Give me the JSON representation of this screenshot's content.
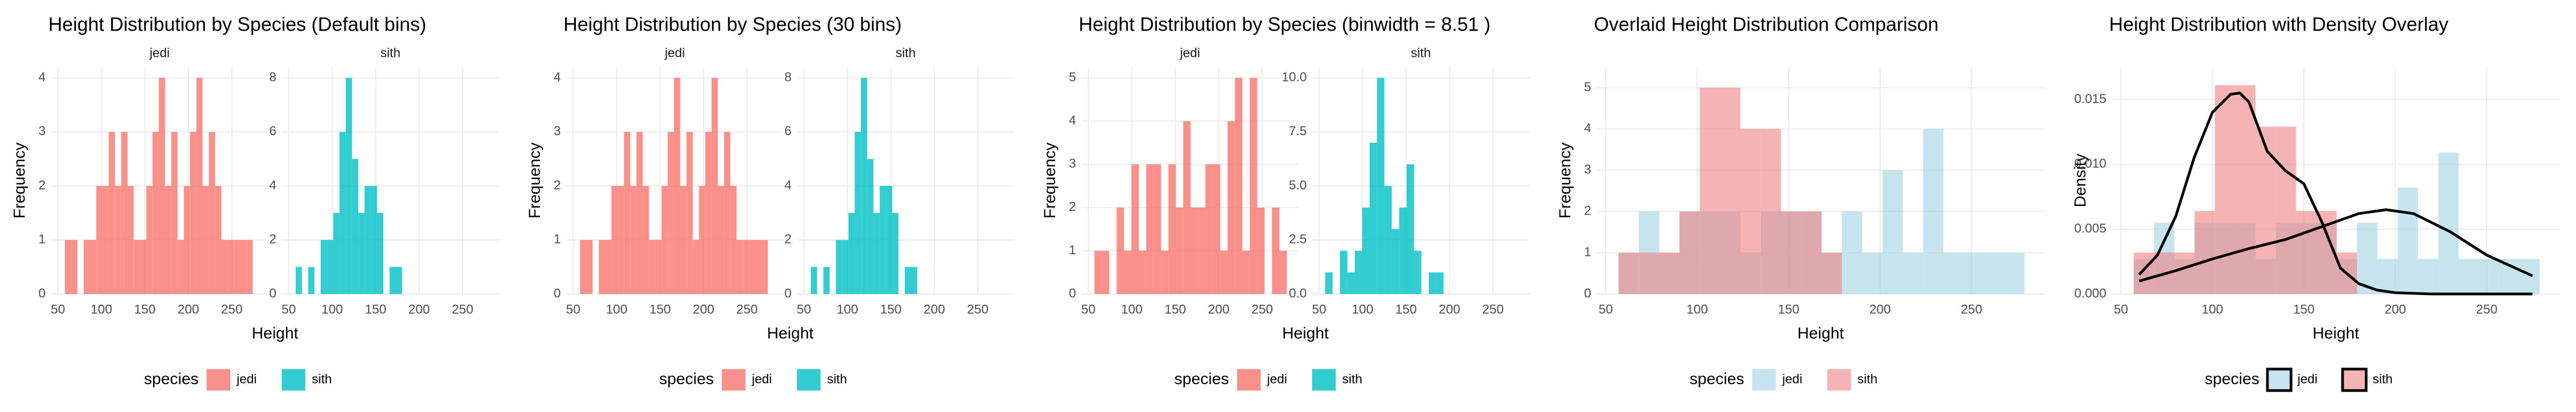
{
  "chart_data": [
    {
      "type": "histogram",
      "title": "Height Distribution by Species (Default bins)",
      "xlabel": "Height",
      "ylabel": "Frequency",
      "legend_title": "species",
      "facet": true,
      "grid": true,
      "xlim": [
        42,
        292
      ],
      "xticks": [
        50,
        100,
        150,
        200,
        250
      ],
      "series": [
        {
          "name": "jedi",
          "color": "#F8766D",
          "alpha": 0.8,
          "ylim": [
            0,
            4.2
          ],
          "yticks": [
            0,
            1,
            2,
            3,
            4
          ],
          "bins": [
            58,
            65.2,
            72.4,
            79.6,
            86.8,
            94,
            101.2,
            108.4,
            115.6,
            122.8,
            130,
            137.2,
            144.4,
            151.6,
            158.8,
            166,
            173.2,
            180.4,
            187.6,
            194.8,
            202,
            209.2,
            216.4,
            223.6,
            230.8,
            238,
            245.2,
            252.4,
            259.6,
            266.8,
            274
          ],
          "values": [
            1,
            1,
            0,
            1,
            1,
            2,
            2,
            3,
            2,
            3,
            2,
            1,
            1,
            2,
            3,
            4,
            2,
            3,
            1,
            2,
            3,
            4,
            2,
            3,
            2,
            1,
            1,
            1,
            1,
            1
          ]
        },
        {
          "name": "sith",
          "color": "#00BFC4",
          "alpha": 0.8,
          "ylim": [
            0,
            8.4
          ],
          "yticks": [
            0,
            2,
            4,
            6,
            8
          ],
          "bins": [
            58,
            65.2,
            72.4,
            79.6,
            86.8,
            94,
            101.2,
            108.4,
            115.6,
            122.8,
            130,
            137.2,
            144.4,
            151.6,
            158.8,
            166,
            173.2,
            180.4,
            187.6,
            194.8,
            202,
            209.2,
            216.4,
            223.6,
            230.8,
            238,
            245.2,
            252.4,
            259.6,
            266.8,
            274
          ],
          "values": [
            1,
            0,
            1,
            0,
            2,
            2,
            3,
            6,
            8,
            5,
            3,
            4,
            4,
            3,
            0,
            1,
            1,
            0,
            0,
            0,
            0,
            0,
            0,
            0,
            0,
            0,
            0,
            0,
            0,
            0
          ]
        }
      ]
    },
    {
      "type": "histogram",
      "title": "Height Distribution by Species (30 bins)",
      "xlabel": "Height",
      "ylabel": "Frequency",
      "legend_title": "species",
      "facet": true,
      "grid": true,
      "xlim": [
        42,
        292
      ],
      "xticks": [
        50,
        100,
        150,
        200,
        250
      ],
      "series": [
        {
          "name": "jedi",
          "color": "#F8766D",
          "alpha": 0.8,
          "ylim": [
            0,
            4.2
          ],
          "yticks": [
            0,
            1,
            2,
            3,
            4
          ],
          "bins": [
            58,
            65.2,
            72.4,
            79.6,
            86.8,
            94,
            101.2,
            108.4,
            115.6,
            122.8,
            130,
            137.2,
            144.4,
            151.6,
            158.8,
            166,
            173.2,
            180.4,
            187.6,
            194.8,
            202,
            209.2,
            216.4,
            223.6,
            230.8,
            238,
            245.2,
            252.4,
            259.6,
            266.8,
            274
          ],
          "values": [
            1,
            1,
            0,
            1,
            1,
            2,
            2,
            3,
            2,
            3,
            2,
            1,
            1,
            2,
            3,
            4,
            2,
            3,
            1,
            2,
            3,
            4,
            2,
            3,
            2,
            1,
            1,
            1,
            1,
            1
          ]
        },
        {
          "name": "sith",
          "color": "#00BFC4",
          "alpha": 0.8,
          "ylim": [
            0,
            8.4
          ],
          "yticks": [
            0,
            2,
            4,
            6,
            8
          ],
          "bins": [
            58,
            65.2,
            72.4,
            79.6,
            86.8,
            94,
            101.2,
            108.4,
            115.6,
            122.8,
            130,
            137.2,
            144.4,
            151.6,
            158.8,
            166,
            173.2,
            180.4,
            187.6,
            194.8,
            202,
            209.2,
            216.4,
            223.6,
            230.8,
            238,
            245.2,
            252.4,
            259.6,
            266.8,
            274
          ],
          "values": [
            1,
            0,
            1,
            0,
            2,
            2,
            3,
            6,
            8,
            5,
            3,
            4,
            4,
            3,
            0,
            1,
            1,
            0,
            0,
            0,
            0,
            0,
            0,
            0,
            0,
            0,
            0,
            0,
            0,
            0
          ]
        }
      ]
    },
    {
      "type": "histogram",
      "title": "Height Distribution by Species (binwidth = 8.51 )",
      "xlabel": "Height",
      "ylabel": "Frequency",
      "legend_title": "species",
      "facet": true,
      "grid": true,
      "xlim": [
        42,
        292
      ],
      "xticks": [
        50,
        100,
        150,
        200,
        250
      ],
      "series": [
        {
          "name": "jedi",
          "color": "#F8766D",
          "alpha": 0.8,
          "ylim": [
            0,
            5.25
          ],
          "yticks": [
            0,
            1,
            2,
            3,
            4,
            5
          ],
          "bins": [
            57,
            65.51,
            74.02,
            82.53,
            91.04,
            99.55,
            108.06,
            116.57,
            125.08,
            133.59,
            142.1,
            150.61,
            159.12,
            167.63,
            176.14,
            184.65,
            193.16,
            201.67,
            210.18,
            218.69,
            227.2,
            235.71,
            244.22,
            252.73,
            261.24,
            269.75,
            278.26
          ],
          "values": [
            1,
            1,
            0,
            2,
            1,
            3,
            1,
            3,
            3,
            1,
            3,
            2,
            4,
            2,
            2,
            3,
            3,
            1,
            4,
            5,
            1,
            5,
            2,
            0,
            2,
            1
          ]
        },
        {
          "name": "sith",
          "color": "#00BFC4",
          "alpha": 0.8,
          "ylim": [
            0,
            10.5
          ],
          "yticks": [
            {
              "value": 0,
              "label": "0.0"
            },
            {
              "value": 2.5,
              "label": "2.5"
            },
            {
              "value": 5,
              "label": "5.0"
            },
            {
              "value": 7.5,
              "label": "7.5"
            },
            {
              "value": 10,
              "label": "10.0"
            }
          ],
          "bins": [
            57,
            65.51,
            74.02,
            82.53,
            91.04,
            99.55,
            108.06,
            116.57,
            125.08,
            133.59,
            142.1,
            150.61,
            159.12,
            167.63,
            176.14,
            184.65,
            193.16,
            201.67,
            210.18,
            218.69,
            227.2,
            235.71,
            244.22,
            252.73,
            261.24,
            269.75,
            278.26
          ],
          "values": [
            1,
            0,
            2,
            1,
            2,
            4,
            7,
            10,
            5,
            3,
            4,
            6,
            2,
            0,
            1,
            1,
            0,
            0,
            0,
            0,
            0,
            0,
            0,
            0,
            0,
            0
          ]
        }
      ]
    },
    {
      "type": "histogram",
      "title": "Overlaid Height Distribution Comparison",
      "xlabel": "Height",
      "ylabel": "Frequency",
      "legend_title": "species",
      "facet": false,
      "grid": true,
      "xlim": [
        45,
        290
      ],
      "xticks": [
        50,
        100,
        150,
        200,
        250
      ],
      "ylim": [
        0,
        5.5
      ],
      "yticks": [
        0,
        1,
        2,
        3,
        4,
        5
      ],
      "series": [
        {
          "name": "jedi",
          "color": "#ADD8E6",
          "alpha": 0.7,
          "bins": [
            57,
            68.1,
            79.2,
            90.3,
            101.4,
            112.5,
            123.6,
            134.7,
            145.8,
            156.9,
            168,
            179.1,
            190.2,
            201.3,
            212.4,
            223.5,
            234.6,
            245.7,
            256.8,
            267.9,
            279
          ],
          "values": [
            1,
            2,
            1,
            2,
            2,
            2,
            1,
            2,
            2,
            2,
            1,
            2,
            1,
            3,
            1,
            4,
            1,
            1,
            1,
            1
          ]
        },
        {
          "name": "sith",
          "color": "#F08080",
          "alpha": 0.6,
          "bins": [
            57,
            68.1,
            79.2,
            90.3,
            101.4,
            112.5,
            123.6,
            134.7,
            145.8,
            156.9,
            168,
            179.1,
            190.2,
            201.3,
            212.4,
            223.5,
            234.6,
            245.7,
            256.8,
            267.9,
            279
          ],
          "values": [
            1,
            1,
            1,
            2,
            5,
            5,
            4,
            4,
            2,
            2,
            1,
            0,
            0,
            0,
            0,
            0,
            0,
            0,
            0,
            0
          ]
        }
      ]
    },
    {
      "type": "histogram",
      "title": "Height Distribution with Density Overlay",
      "xlabel": "Height",
      "ylabel": "Density",
      "legend_title": "species",
      "facet": false,
      "grid": true,
      "xlim": [
        45,
        290
      ],
      "xticks": [
        50,
        100,
        150,
        200,
        250
      ],
      "ylim": [
        0,
        0.0175
      ],
      "yticks": [
        {
          "value": 0,
          "label": "0.000"
        },
        {
          "value": 0.005,
          "label": "0.005"
        },
        {
          "value": 0.01,
          "label": "0.010"
        },
        {
          "value": 0.015,
          "label": "0.015"
        }
      ],
      "legend_key_border": "#000000",
      "curve_color": "#000000",
      "series": [
        {
          "name": "jedi",
          "color": "#ADD8E6",
          "alpha": 0.7,
          "bins": [
            57,
            68.1,
            79.2,
            90.3,
            101.4,
            112.5,
            123.6,
            134.7,
            145.8,
            156.9,
            168,
            179.1,
            190.2,
            201.3,
            212.4,
            223.5,
            234.6,
            245.7,
            256.8,
            267.9,
            279
          ],
          "values": [
            0.0027,
            0.0055,
            0.0027,
            0.0055,
            0.0055,
            0.0055,
            0.0027,
            0.0055,
            0.0055,
            0.0055,
            0.0027,
            0.0055,
            0.0027,
            0.0082,
            0.0027,
            0.0109,
            0.0027,
            0.0027,
            0.0027,
            0.0027
          ],
          "curve_x": [
            60,
            80,
            100,
            120,
            140,
            160,
            180,
            195,
            210,
            230,
            250,
            275
          ],
          "curve_y": [
            0.001,
            0.0018,
            0.0027,
            0.0035,
            0.0042,
            0.0052,
            0.0062,
            0.0065,
            0.0062,
            0.0048,
            0.003,
            0.0014
          ]
        },
        {
          "name": "sith",
          "color": "#F08080",
          "alpha": 0.6,
          "bins": [
            57,
            68.1,
            79.2,
            90.3,
            101.4,
            112.5,
            123.6,
            134.7,
            145.8,
            156.9,
            168,
            179.1,
            190.2,
            201.3,
            212.4,
            223.5,
            234.6,
            245.7,
            256.8,
            267.9,
            279
          ],
          "values": [
            0.0032,
            0.0032,
            0.0032,
            0.0064,
            0.0161,
            0.0161,
            0.0129,
            0.0129,
            0.0064,
            0.0064,
            0.0032,
            0,
            0,
            0,
            0,
            0,
            0,
            0,
            0,
            0
          ],
          "curve_x": [
            60,
            70,
            80,
            90,
            100,
            110,
            115,
            120,
            130,
            140,
            150,
            160,
            170,
            180,
            190,
            200,
            220,
            250,
            275
          ],
          "curve_y": [
            0.0015,
            0.003,
            0.006,
            0.0105,
            0.014,
            0.0154,
            0.0155,
            0.0148,
            0.011,
            0.0095,
            0.0085,
            0.0055,
            0.002,
            0.0008,
            0.0003,
            0.0001,
            0,
            0,
            0
          ]
        }
      ]
    }
  ]
}
